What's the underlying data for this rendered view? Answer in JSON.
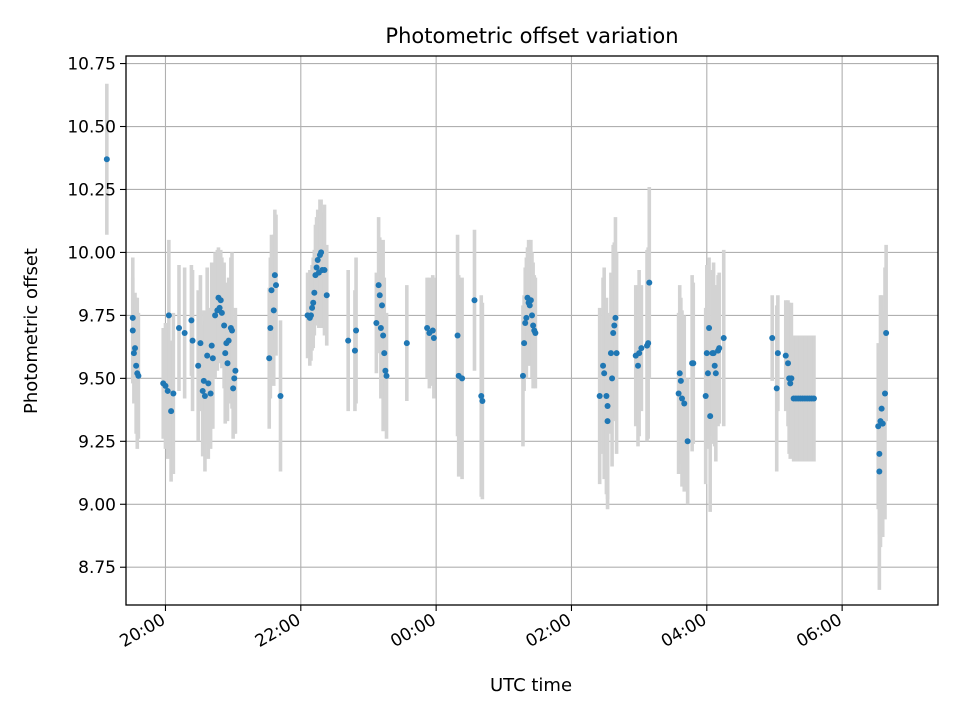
{
  "chart_data": {
    "type": "scatter",
    "title": "Photometric offset variation",
    "xlabel": "UTC time",
    "ylabel": "Photometric offset",
    "x_unit": "time of night (UTC), spanning midnight",
    "x_ticks": [
      "20:00",
      "22:00",
      "00:00",
      "02:00",
      "04:00",
      "06:00"
    ],
    "xlim": [
      "19:25",
      "07:25"
    ],
    "ylim": [
      8.6,
      10.78
    ],
    "y_ticks": [
      "8.75",
      "9.00",
      "9.25",
      "9.50",
      "9.75",
      "10.00",
      "10.25",
      "10.50",
      "10.75"
    ],
    "grid": true,
    "point_color": "#1f77b4",
    "errorbar_color": "#d3d3d3",
    "points": [
      {
        "t": "19:08",
        "y": 10.37,
        "e": 0.3
      },
      {
        "t": "19:31",
        "y": 9.74,
        "e": 0.24
      },
      {
        "t": "19:31",
        "y": 9.69,
        "e": 0.21
      },
      {
        "t": "19:32",
        "y": 9.6,
        "e": 0.2
      },
      {
        "t": "19:33",
        "y": 9.62,
        "e": 0.22
      },
      {
        "t": "19:34",
        "y": 9.55,
        "e": 0.27
      },
      {
        "t": "19:35",
        "y": 9.52,
        "e": 0.3
      },
      {
        "t": "19:36",
        "y": 9.51,
        "e": 0.25
      },
      {
        "t": "19:58",
        "y": 9.48,
        "e": 0.22
      },
      {
        "t": "20:00",
        "y": 9.47,
        "e": 0.25
      },
      {
        "t": "20:02",
        "y": 9.45,
        "e": 0.27
      },
      {
        "t": "20:03",
        "y": 9.75,
        "e": 0.3
      },
      {
        "t": "20:05",
        "y": 9.37,
        "e": 0.28
      },
      {
        "t": "20:07",
        "y": 9.44,
        "e": 0.32
      },
      {
        "t": "20:12",
        "y": 9.7,
        "e": 0.25
      },
      {
        "t": "20:17",
        "y": 9.68,
        "e": 0.26
      },
      {
        "t": "20:23",
        "y": 9.73,
        "e": 0.22
      },
      {
        "t": "20:24",
        "y": 9.65,
        "e": 0.28
      },
      {
        "t": "20:29",
        "y": 9.55,
        "e": 0.3
      },
      {
        "t": "20:31",
        "y": 9.64,
        "e": 0.27
      },
      {
        "t": "20:33",
        "y": 9.45,
        "e": 0.26
      },
      {
        "t": "20:34",
        "y": 9.49,
        "e": 0.28
      },
      {
        "t": "20:35",
        "y": 9.43,
        "e": 0.3
      },
      {
        "t": "20:37",
        "y": 9.59,
        "e": 0.35
      },
      {
        "t": "20:38",
        "y": 9.48,
        "e": 0.3
      },
      {
        "t": "20:40",
        "y": 9.44,
        "e": 0.22
      },
      {
        "t": "20:41",
        "y": 9.63,
        "e": 0.33
      },
      {
        "t": "20:42",
        "y": 9.58,
        "e": 0.28
      },
      {
        "t": "20:44",
        "y": 9.75,
        "e": 0.25
      },
      {
        "t": "20:46",
        "y": 9.77,
        "e": 0.24
      },
      {
        "t": "20:47",
        "y": 9.82,
        "e": 0.2
      },
      {
        "t": "20:48",
        "y": 9.78,
        "e": 0.22
      },
      {
        "t": "20:49",
        "y": 9.81,
        "e": 0.2
      },
      {
        "t": "20:50",
        "y": 9.76,
        "e": 0.22
      },
      {
        "t": "20:52",
        "y": 9.71,
        "e": 0.25
      },
      {
        "t": "20:53",
        "y": 9.6,
        "e": 0.28
      },
      {
        "t": "20:54",
        "y": 9.64,
        "e": 0.22
      },
      {
        "t": "20:55",
        "y": 9.56,
        "e": 0.23
      },
      {
        "t": "20:56",
        "y": 9.65,
        "e": 0.25
      },
      {
        "t": "20:58",
        "y": 9.7,
        "e": 0.28
      },
      {
        "t": "20:59",
        "y": 9.69,
        "e": 0.31
      },
      {
        "t": "21:00",
        "y": 9.46,
        "e": 0.2
      },
      {
        "t": "21:01",
        "y": 9.5,
        "e": 0.22
      },
      {
        "t": "21:02",
        "y": 9.53,
        "e": 0.25
      },
      {
        "t": "21:32",
        "y": 9.58,
        "e": 0.28
      },
      {
        "t": "21:33",
        "y": 9.7,
        "e": 0.28
      },
      {
        "t": "21:34",
        "y": 9.85,
        "e": 0.22
      },
      {
        "t": "21:36",
        "y": 9.77,
        "e": 0.3
      },
      {
        "t": "21:37",
        "y": 9.91,
        "e": 0.26
      },
      {
        "t": "21:38",
        "y": 9.87,
        "e": 0.28
      },
      {
        "t": "21:42",
        "y": 9.43,
        "e": 0.3
      },
      {
        "t": "22:06",
        "y": 9.75,
        "e": 0.17
      },
      {
        "t": "22:08",
        "y": 9.74,
        "e": 0.19
      },
      {
        "t": "22:09",
        "y": 9.75,
        "e": 0.18
      },
      {
        "t": "22:10",
        "y": 9.78,
        "e": 0.17
      },
      {
        "t": "22:11",
        "y": 9.8,
        "e": 0.18
      },
      {
        "t": "22:12",
        "y": 9.84,
        "e": 0.17
      },
      {
        "t": "22:13",
        "y": 9.91,
        "e": 0.2
      },
      {
        "t": "22:14",
        "y": 9.94,
        "e": 0.2
      },
      {
        "t": "22:15",
        "y": 9.97,
        "e": 0.2
      },
      {
        "t": "22:16",
        "y": 9.92,
        "e": 0.22
      },
      {
        "t": "22:17",
        "y": 9.99,
        "e": 0.22
      },
      {
        "t": "22:18",
        "y": 10.0,
        "e": 0.21
      },
      {
        "t": "22:19",
        "y": 9.93,
        "e": 0.23
      },
      {
        "t": "22:21",
        "y": 9.93,
        "e": 0.26
      },
      {
        "t": "22:23",
        "y": 9.83,
        "e": 0.2
      },
      {
        "t": "22:42",
        "y": 9.65,
        "e": 0.28
      },
      {
        "t": "22:48",
        "y": 9.61,
        "e": 0.24
      },
      {
        "t": "22:49",
        "y": 9.69,
        "e": 0.29
      },
      {
        "t": "23:07",
        "y": 9.72,
        "e": 0.2
      },
      {
        "t": "23:09",
        "y": 9.87,
        "e": 0.27
      },
      {
        "t": "23:10",
        "y": 9.83,
        "e": 0.23
      },
      {
        "t": "23:11",
        "y": 9.7,
        "e": 0.28
      },
      {
        "t": "23:12",
        "y": 9.79,
        "e": 0.25
      },
      {
        "t": "23:13",
        "y": 9.67,
        "e": 0.38
      },
      {
        "t": "23:14",
        "y": 9.6,
        "e": 0.3
      },
      {
        "t": "23:15",
        "y": 9.53,
        "e": 0.22
      },
      {
        "t": "23:16",
        "y": 9.51,
        "e": 0.25
      },
      {
        "t": "23:34",
        "y": 9.64,
        "e": 0.23
      },
      {
        "t": "23:52",
        "y": 9.7,
        "e": 0.2
      },
      {
        "t": "23:54",
        "y": 9.68,
        "e": 0.22
      },
      {
        "t": "23:57",
        "y": 9.69,
        "e": 0.22
      },
      {
        "t": "23:58",
        "y": 9.66,
        "e": 0.24
      },
      {
        "t": "00:19",
        "y": 9.67,
        "e": 0.4
      },
      {
        "t": "00:20",
        "y": 9.51,
        "e": 0.4
      },
      {
        "t": "00:23",
        "y": 9.5,
        "e": 0.4
      },
      {
        "t": "00:34",
        "y": 9.81,
        "e": 0.28
      },
      {
        "t": "00:40",
        "y": 9.43,
        "e": 0.4
      },
      {
        "t": "00:41",
        "y": 9.41,
        "e": 0.39
      },
      {
        "t": "01:17",
        "y": 9.51,
        "e": 0.28
      },
      {
        "t": "01:18",
        "y": 9.64,
        "e": 0.19
      },
      {
        "t": "01:19",
        "y": 9.72,
        "e": 0.22
      },
      {
        "t": "01:20",
        "y": 9.74,
        "e": 0.24
      },
      {
        "t": "01:21",
        "y": 9.82,
        "e": 0.2
      },
      {
        "t": "01:22",
        "y": 9.8,
        "e": 0.25
      },
      {
        "t": "01:23",
        "y": 9.79,
        "e": 0.24
      },
      {
        "t": "01:24",
        "y": 9.81,
        "e": 0.24
      },
      {
        "t": "01:25",
        "y": 9.75,
        "e": 0.25
      },
      {
        "t": "01:26",
        "y": 9.71,
        "e": 0.25
      },
      {
        "t": "01:27",
        "y": 9.69,
        "e": 0.22
      },
      {
        "t": "01:28",
        "y": 9.68,
        "e": 0.22
      },
      {
        "t": "02:25",
        "y": 9.43,
        "e": 0.35
      },
      {
        "t": "02:28",
        "y": 9.55,
        "e": 0.35
      },
      {
        "t": "02:29",
        "y": 9.52,
        "e": 0.42
      },
      {
        "t": "02:31",
        "y": 9.43,
        "e": 0.39
      },
      {
        "t": "02:32",
        "y": 9.39,
        "e": 0.37
      },
      {
        "t": "02:32",
        "y": 9.33,
        "e": 0.35
      },
      {
        "t": "02:35",
        "y": 9.6,
        "e": 0.32
      },
      {
        "t": "02:36",
        "y": 9.5,
        "e": 0.35
      },
      {
        "t": "02:37",
        "y": 9.68,
        "e": 0.35
      },
      {
        "t": "02:38",
        "y": 9.71,
        "e": 0.33
      },
      {
        "t": "02:39",
        "y": 9.74,
        "e": 0.4
      },
      {
        "t": "02:40",
        "y": 9.6,
        "e": 0.4
      },
      {
        "t": "02:57",
        "y": 9.59,
        "e": 0.28
      },
      {
        "t": "02:59",
        "y": 9.55,
        "e": 0.32
      },
      {
        "t": "03:00",
        "y": 9.6,
        "e": 0.33
      },
      {
        "t": "03:02",
        "y": 9.62,
        "e": 0.25
      },
      {
        "t": "03:07",
        "y": 9.63,
        "e": 0.38
      },
      {
        "t": "03:08",
        "y": 9.64,
        "e": 0.38
      },
      {
        "t": "03:09",
        "y": 9.88,
        "e": 0.38
      },
      {
        "t": "03:35",
        "y": 9.44,
        "e": 0.32
      },
      {
        "t": "03:36",
        "y": 9.52,
        "e": 0.35
      },
      {
        "t": "03:37",
        "y": 9.49,
        "e": 0.33
      },
      {
        "t": "03:38",
        "y": 9.42,
        "e": 0.35
      },
      {
        "t": "03:40",
        "y": 9.4,
        "e": 0.35
      },
      {
        "t": "03:43",
        "y": 9.25,
        "e": 0.25
      },
      {
        "t": "03:47",
        "y": 9.56,
        "e": 0.35
      },
      {
        "t": "03:48",
        "y": 9.56,
        "e": 0.32
      },
      {
        "t": "03:59",
        "y": 9.43,
        "e": 0.35
      },
      {
        "t": "04:00",
        "y": 9.6,
        "e": 0.35
      },
      {
        "t": "04:01",
        "y": 9.52,
        "e": 0.3
      },
      {
        "t": "04:02",
        "y": 9.7,
        "e": 0.28
      },
      {
        "t": "04:03",
        "y": 9.35,
        "e": 0.38
      },
      {
        "t": "04:05",
        "y": 9.6,
        "e": 0.33
      },
      {
        "t": "04:06",
        "y": 9.6,
        "e": 0.36
      },
      {
        "t": "04:07",
        "y": 9.55,
        "e": 0.32
      },
      {
        "t": "04:08",
        "y": 9.52,
        "e": 0.35
      },
      {
        "t": "04:10",
        "y": 9.61,
        "e": 0.3
      },
      {
        "t": "04:11",
        "y": 9.62,
        "e": 0.3
      },
      {
        "t": "04:15",
        "y": 9.66,
        "e": 0.35
      },
      {
        "t": "04:58",
        "y": 9.66,
        "e": 0.17
      },
      {
        "t": "05:02",
        "y": 9.46,
        "e": 0.33
      },
      {
        "t": "05:03",
        "y": 9.6,
        "e": 0.23
      },
      {
        "t": "05:10",
        "y": 9.59,
        "e": 0.22
      },
      {
        "t": "05:12",
        "y": 9.56,
        "e": 0.25
      },
      {
        "t": "05:13",
        "y": 9.5,
        "e": 0.3
      },
      {
        "t": "05:14",
        "y": 9.48,
        "e": 0.3
      },
      {
        "t": "05:15",
        "y": 9.5,
        "e": 0.3
      },
      {
        "t": "05:17",
        "y": 9.42,
        "e": 0.25
      },
      {
        "t": "05:19",
        "y": 9.42,
        "e": 0.25
      },
      {
        "t": "05:21",
        "y": 9.42,
        "e": 0.25
      },
      {
        "t": "05:23",
        "y": 9.42,
        "e": 0.25
      },
      {
        "t": "05:25",
        "y": 9.42,
        "e": 0.25
      },
      {
        "t": "05:27",
        "y": 9.42,
        "e": 0.25
      },
      {
        "t": "05:29",
        "y": 9.42,
        "e": 0.25
      },
      {
        "t": "05:31",
        "y": 9.42,
        "e": 0.25
      },
      {
        "t": "05:33",
        "y": 9.42,
        "e": 0.25
      },
      {
        "t": "05:35",
        "y": 9.42,
        "e": 0.25
      },
      {
        "t": "06:32",
        "y": 9.31,
        "e": 0.33
      },
      {
        "t": "06:33",
        "y": 9.2,
        "e": 0.32
      },
      {
        "t": "06:33",
        "y": 9.13,
        "e": 0.47
      },
      {
        "t": "06:34",
        "y": 9.33,
        "e": 0.5
      },
      {
        "t": "06:35",
        "y": 9.38,
        "e": 0.45
      },
      {
        "t": "06:36",
        "y": 9.32,
        "e": 0.45
      },
      {
        "t": "06:38",
        "y": 9.44,
        "e": 0.5
      },
      {
        "t": "06:39",
        "y": 9.68,
        "e": 0.35
      }
    ]
  }
}
